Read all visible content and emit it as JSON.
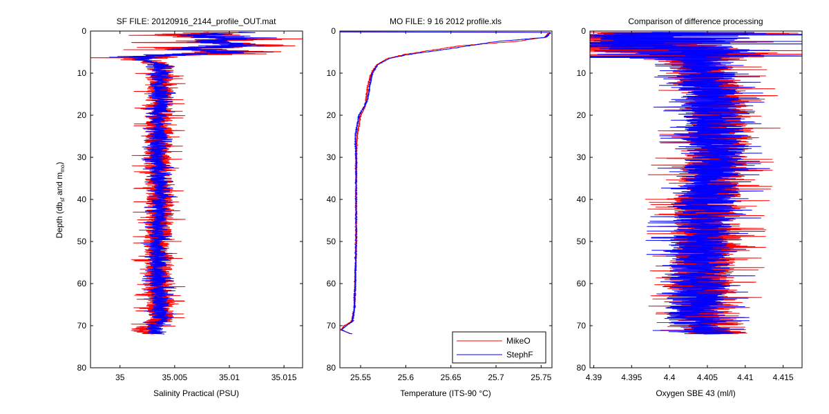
{
  "figure": {
    "ylabel_parts": {
      "prefix": "Depth (db",
      "sub1": "sf",
      "mid": " and m",
      "sub2": "mo",
      "suffix": ")"
    }
  },
  "colors": {
    "mikeo": "#ff0000",
    "stephf": "#0000ff"
  },
  "chart_data": [
    {
      "type": "line",
      "title": "SF FILE: 20120916_2144_profile_OUT.mat",
      "xlabel": "Salinity Practical (PSU)",
      "ylabel": "Depth (db_sf and m_mo)",
      "xlim": [
        34.9973,
        35.0167
      ],
      "ylim": [
        0,
        80
      ],
      "y_reversed": true,
      "xticks": [
        35,
        35.005,
        35.01,
        35.015
      ],
      "xtick_labels": [
        "35",
        "35.005",
        "35.01",
        "35.015"
      ],
      "yticks": [
        0,
        10,
        20,
        30,
        40,
        50,
        60,
        70,
        80
      ],
      "ytick_labels": [
        "0",
        "10",
        "20",
        "30",
        "40",
        "50",
        "60",
        "70",
        "80"
      ],
      "legend": "none",
      "series": [
        {
          "name": "MikeO",
          "color": "#ff0000",
          "noise": 0.0013,
          "seed": 11,
          "profile": [
            [
              0.3,
              35.01
            ],
            [
              1.0,
              35.004
            ],
            [
              1.8,
              35.012
            ],
            [
              2.6,
              35.006
            ],
            [
              3.3,
              35.013
            ],
            [
              4.2,
              35.005
            ],
            [
              5.0,
              35.012
            ],
            [
              5.8,
              35.003
            ],
            [
              6.5,
              35.0015
            ],
            [
              8,
              35.0038
            ],
            [
              12,
              35.0035
            ],
            [
              16,
              35.0037
            ],
            [
              20,
              35.0035
            ],
            [
              25,
              35.0036
            ],
            [
              30,
              35.0034
            ],
            [
              35,
              35.0035
            ],
            [
              40,
              35.0037
            ],
            [
              45,
              35.0036
            ],
            [
              50,
              35.0034
            ],
            [
              55,
              35.0035
            ],
            [
              60,
              35.0035
            ],
            [
              65,
              35.0037
            ],
            [
              69,
              35.0036
            ],
            [
              71,
              35.002
            ],
            [
              72,
              35.0035
            ]
          ]
        },
        {
          "name": "StephF",
          "color": "#0000ff",
          "noise": 0.0008,
          "seed": 23,
          "profile": [
            [
              0.3,
              35.012
            ],
            [
              1.0,
              35.007
            ],
            [
              1.8,
              35.011
            ],
            [
              2.6,
              35.008
            ],
            [
              3.3,
              35.012
            ],
            [
              4.2,
              35.007
            ],
            [
              5.0,
              35.01
            ],
            [
              5.8,
              35.004
            ],
            [
              6.5,
              35.0017
            ],
            [
              8,
              35.0038
            ],
            [
              12,
              35.0035
            ],
            [
              16,
              35.0037
            ],
            [
              20,
              35.0035
            ],
            [
              25,
              35.0036
            ],
            [
              30,
              35.0034
            ],
            [
              35,
              35.0035
            ],
            [
              40,
              35.0037
            ],
            [
              45,
              35.0036
            ],
            [
              50,
              35.0034
            ],
            [
              55,
              35.0035
            ],
            [
              60,
              35.0035
            ],
            [
              65,
              35.0037
            ],
            [
              69,
              35.0036
            ],
            [
              71,
              35.003
            ],
            [
              72,
              35.0035
            ]
          ]
        }
      ]
    },
    {
      "type": "line",
      "title": "MO FILE: 9 16 2012 profile.xls",
      "xlabel": "Temperature (ITS-90 °C)",
      "ylabel": "",
      "xlim": [
        25.527,
        25.762
      ],
      "ylim": [
        0,
        80
      ],
      "y_reversed": true,
      "xticks": [
        25.55,
        25.6,
        25.65,
        25.7,
        25.75
      ],
      "xtick_labels": [
        "25.55",
        "25.6",
        "25.65",
        "25.7",
        "25.75"
      ],
      "yticks": [
        0,
        10,
        20,
        30,
        40,
        50,
        60,
        70,
        80
      ],
      "ytick_labels": [
        "0",
        "10",
        "20",
        "30",
        "40",
        "50",
        "60",
        "70",
        "80"
      ],
      "legend": "bottom-right",
      "series": [
        {
          "name": "MikeO",
          "color": "#ff0000",
          "noise": 0.0006,
          "seed": 37,
          "profile": [
            [
              0.2,
              25.527
            ],
            [
              0.3,
              25.76
            ],
            [
              1.5,
              25.755
            ],
            [
              2.5,
              25.72
            ],
            [
              3.5,
              25.66
            ],
            [
              4.5,
              25.63
            ],
            [
              5.5,
              25.6
            ],
            [
              6.5,
              25.58
            ],
            [
              8,
              25.568
            ],
            [
              10,
              25.562
            ],
            [
              13,
              25.558
            ],
            [
              16,
              25.556
            ],
            [
              18,
              25.555
            ],
            [
              20,
              25.55
            ],
            [
              25,
              25.546
            ],
            [
              30,
              25.545
            ],
            [
              40,
              25.545
            ],
            [
              50,
              25.545
            ],
            [
              60,
              25.544
            ],
            [
              66,
              25.543
            ],
            [
              69,
              25.54
            ],
            [
              70,
              25.532
            ],
            [
              71,
              25.528
            ],
            [
              72,
              25.54
            ]
          ]
        },
        {
          "name": "StephF",
          "color": "#0000ff",
          "noise": 0.0005,
          "seed": 41,
          "profile": [
            [
              0.2,
              25.527
            ],
            [
              0.3,
              25.76
            ],
            [
              1.5,
              25.755
            ],
            [
              2.5,
              25.7
            ],
            [
              3.5,
              25.67
            ],
            [
              4.5,
              25.64
            ],
            [
              5.5,
              25.605
            ],
            [
              6.5,
              25.582
            ],
            [
              8,
              25.569
            ],
            [
              10,
              25.563
            ],
            [
              13,
              25.56
            ],
            [
              16,
              25.558
            ],
            [
              18,
              25.554
            ],
            [
              20,
              25.548
            ],
            [
              25,
              25.544
            ],
            [
              30,
              25.545
            ],
            [
              40,
              25.545
            ],
            [
              50,
              25.545
            ],
            [
              60,
              25.544
            ],
            [
              66,
              25.543
            ],
            [
              69,
              25.541
            ],
            [
              70,
              25.534
            ],
            [
              71,
              25.529
            ],
            [
              72,
              25.54
            ]
          ]
        }
      ]
    },
    {
      "type": "line",
      "title": "Comparison of difference processing",
      "xlabel": "Oxygen SBE 43 (ml/l)",
      "ylabel": "",
      "xlim": [
        4.3895,
        4.4175
      ],
      "ylim": [
        0,
        80
      ],
      "y_reversed": true,
      "xticks": [
        4.39,
        4.395,
        4.4,
        4.405,
        4.41,
        4.415
      ],
      "xtick_labels": [
        "4.39",
        "4.395",
        "4.4",
        "4.405",
        "4.41",
        "4.415"
      ],
      "yticks": [
        0,
        10,
        20,
        30,
        40,
        50,
        60,
        70,
        80
      ],
      "ytick_labels": [
        "0",
        "10",
        "20",
        "30",
        "40",
        "50",
        "60",
        "70",
        "80"
      ],
      "legend": "none",
      "series": [
        {
          "name": "MikeO",
          "color": "#ff0000",
          "noise": 0.0045,
          "seed": 53,
          "profile": [
            [
              0.3,
              4.401
            ],
            [
              2,
              4.397
            ],
            [
              3.5,
              4.394
            ],
            [
              5,
              4.4
            ],
            [
              8,
              4.404
            ],
            [
              15,
              4.406
            ],
            [
              22,
              4.407
            ],
            [
              30,
              4.406
            ],
            [
              40,
              4.405
            ],
            [
              50,
              4.405
            ],
            [
              60,
              4.404
            ],
            [
              68,
              4.405
            ],
            [
              72,
              4.406
            ]
          ]
        },
        {
          "name": "StephF",
          "color": "#0000ff",
          "noise": 0.004,
          "seed": 67,
          "profile": [
            [
              0.3,
              4.403
            ],
            [
              2,
              4.399
            ],
            [
              3.5,
              4.398
            ],
            [
              5,
              4.401
            ],
            [
              8,
              4.405
            ],
            [
              15,
              4.405
            ],
            [
              22,
              4.406
            ],
            [
              30,
              4.406
            ],
            [
              40,
              4.405
            ],
            [
              50,
              4.404
            ],
            [
              60,
              4.404
            ],
            [
              68,
              4.403
            ],
            [
              72,
              4.405
            ]
          ]
        }
      ]
    }
  ]
}
